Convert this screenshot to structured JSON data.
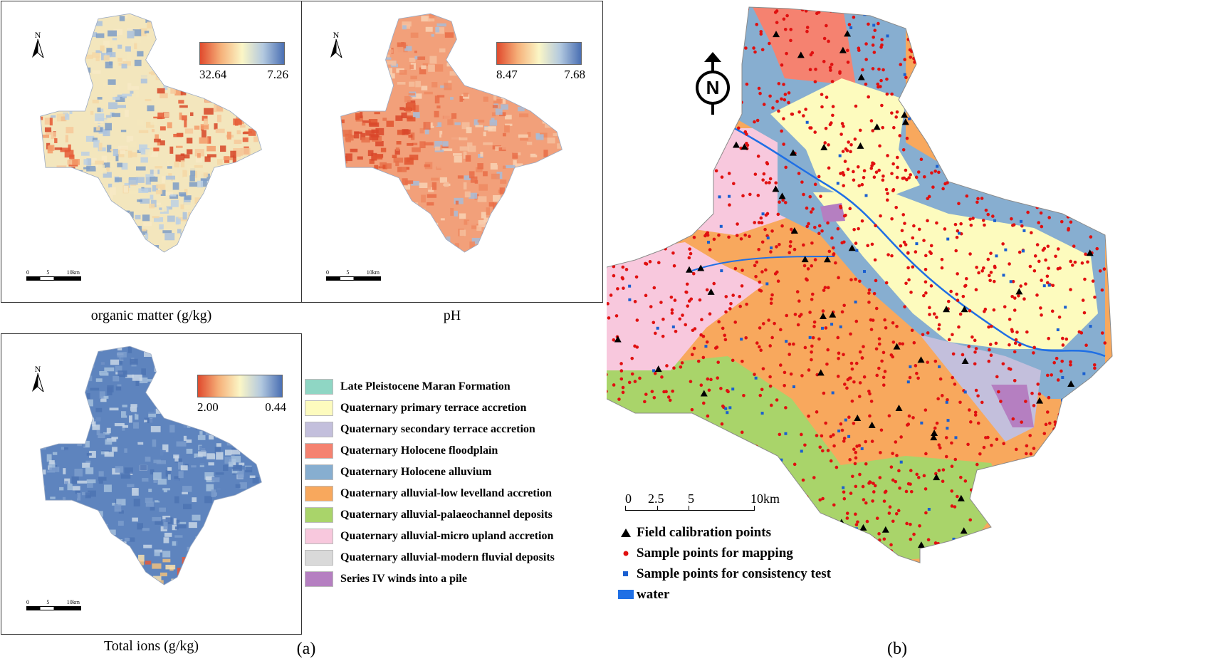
{
  "panel_a": {
    "maps": [
      {
        "id": "om",
        "caption": "organic matter (g/kg)",
        "north": "N",
        "cbar_min_label": "32.64",
        "cbar_max_label": "7.26",
        "scale_ticks": [
          "0",
          "5",
          "10"
        ],
        "scale_unit": "km"
      },
      {
        "id": "ph",
        "caption": "pH",
        "north": "N",
        "cbar_min_label": "8.47",
        "cbar_max_label": "7.68",
        "scale_ticks": [
          "0",
          "5",
          "10"
        ],
        "scale_unit": "km"
      },
      {
        "id": "ions",
        "caption": "Total ions (g/kg)",
        "north": "N",
        "cbar_min_label": "2.00",
        "cbar_max_label": "0.44",
        "scale_ticks": [
          "0",
          "5",
          "10"
        ],
        "scale_unit": "km"
      }
    ],
    "label": "(a)",
    "legend": [
      {
        "label": "Late Pleistocene Maran Formation",
        "color": "#8fd6c4"
      },
      {
        "label": "Quaternary primary terrace accretion",
        "color": "#fdfbbe"
      },
      {
        "label": "Quaternary secondary terrace accretion",
        "color": "#c3bfdc"
      },
      {
        "label": "Quaternary Holocene floodplain",
        "color": "#f58270"
      },
      {
        "label": "Quaternary Holocene alluvium",
        "color": "#87aed0"
      },
      {
        "label": "Quaternary alluvial-low levelland accretion",
        "color": "#f8a85d"
      },
      {
        "label": "Quaternary alluvial-palaeochannel deposits",
        "color": "#a9d46a"
      },
      {
        "label": "Quaternary alluvial-micro upland accretion",
        "color": "#f8c8dd"
      },
      {
        "label": "Quaternary alluvial-modern fluvial deposits",
        "color": "#d9d9d9"
      },
      {
        "label": "Series IV winds into a pile",
        "color": "#b57fc1"
      }
    ]
  },
  "panel_b": {
    "label": "(b)",
    "north": "N",
    "scale_ticks": [
      "0",
      "2.5",
      "5",
      "10"
    ],
    "scale_unit": "km",
    "legend": [
      {
        "symbol": "black-triangle",
        "label": "Field calibration points"
      },
      {
        "symbol": "red-dot",
        "label": "Sample points for mapping"
      },
      {
        "symbol": "blue-square",
        "label": "Sample points for consistency test"
      },
      {
        "symbol": "blue-rect",
        "label": "water"
      }
    ]
  }
}
